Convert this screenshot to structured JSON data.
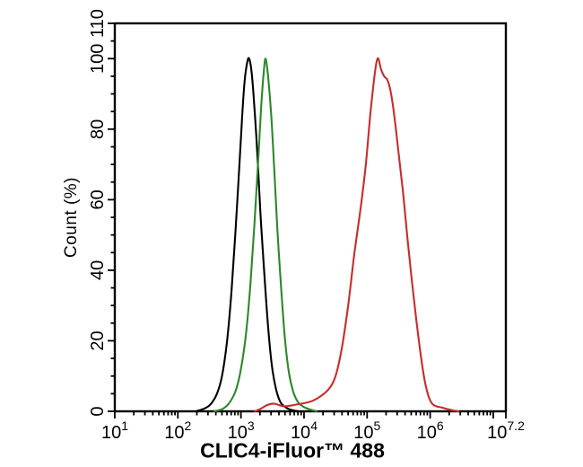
{
  "chart_data": {
    "type": "line",
    "subtype": "flow-cytometry-histogram",
    "title": "",
    "xlabel": "CLIC4-iFluor™ 488",
    "ylabel": "Count  (%)",
    "x_scale": "log10",
    "xlim_log": [
      1,
      7.2
    ],
    "ylim": [
      0,
      110
    ],
    "grid": "off",
    "legend": "none",
    "x_major_ticks_log": [
      1,
      2,
      3,
      4,
      5,
      6,
      7,
      7.2
    ],
    "x_tick_labels": [
      {
        "log": 1,
        "base": "10",
        "exp": "1"
      },
      {
        "log": 2,
        "base": "10",
        "exp": "2"
      },
      {
        "log": 3,
        "base": "10",
        "exp": "3"
      },
      {
        "log": 4,
        "base": "10",
        "exp": "4"
      },
      {
        "log": 5,
        "base": "10",
        "exp": "5"
      },
      {
        "log": 6,
        "base": "10",
        "exp": "6"
      },
      {
        "log": 7.2,
        "base": "10",
        "exp": "7.2"
      }
    ],
    "x_minor_ticks_per_decade": [
      2,
      3,
      4,
      5,
      6,
      7,
      8,
      9
    ],
    "y_major_ticks": [
      0,
      20,
      40,
      60,
      80,
      100,
      110
    ],
    "y_tick_labels": [
      "0",
      "20",
      "40",
      "60",
      "80",
      "100",
      "110"
    ],
    "y_minor_step": 5,
    "axis_color": "#000000",
    "series": [
      {
        "name": "black-curve",
        "color": "#000000",
        "peak_log_x": 3.13,
        "peak_pct": 100,
        "points": [
          [
            2.28,
            0
          ],
          [
            2.42,
            0.8
          ],
          [
            2.52,
            2
          ],
          [
            2.62,
            5
          ],
          [
            2.7,
            10
          ],
          [
            2.78,
            20
          ],
          [
            2.85,
            34
          ],
          [
            2.91,
            50
          ],
          [
            2.97,
            68
          ],
          [
            3.02,
            84
          ],
          [
            3.06,
            94
          ],
          [
            3.1,
            99
          ],
          [
            3.13,
            100
          ],
          [
            3.17,
            96
          ],
          [
            3.21,
            87
          ],
          [
            3.26,
            73
          ],
          [
            3.31,
            56
          ],
          [
            3.37,
            39
          ],
          [
            3.43,
            24
          ],
          [
            3.49,
            13
          ],
          [
            3.56,
            6
          ],
          [
            3.63,
            2.5
          ],
          [
            3.72,
            1
          ],
          [
            3.82,
            0.3
          ],
          [
            3.92,
            0
          ]
        ]
      },
      {
        "name": "green-curve",
        "color": "#2d872d",
        "peak_log_x": 3.39,
        "peak_pct": 100,
        "points": [
          [
            2.58,
            0
          ],
          [
            2.72,
            0.8
          ],
          [
            2.82,
            2.5
          ],
          [
            2.92,
            6
          ],
          [
            3.0,
            12
          ],
          [
            3.08,
            22
          ],
          [
            3.15,
            36
          ],
          [
            3.21,
            52
          ],
          [
            3.27,
            70
          ],
          [
            3.32,
            86
          ],
          [
            3.36,
            96
          ],
          [
            3.39,
            100
          ],
          [
            3.43,
            95
          ],
          [
            3.48,
            84
          ],
          [
            3.53,
            68
          ],
          [
            3.58,
            51
          ],
          [
            3.64,
            34
          ],
          [
            3.7,
            20
          ],
          [
            3.76,
            11
          ],
          [
            3.83,
            5.5
          ],
          [
            3.91,
            2.5
          ],
          [
            4.0,
            1.2
          ],
          [
            4.1,
            0.5
          ],
          [
            4.2,
            0
          ]
        ]
      },
      {
        "name": "red-curve",
        "color": "#c62d2d",
        "peak_log_x": 5.18,
        "peak_pct": 100,
        "points": [
          [
            3.22,
            0
          ],
          [
            3.32,
            0.8
          ],
          [
            3.42,
            1.8
          ],
          [
            3.52,
            2.2
          ],
          [
            3.6,
            1.8
          ],
          [
            3.68,
            1.4
          ],
          [
            3.78,
            1.6
          ],
          [
            3.9,
            2
          ],
          [
            4.02,
            2.4
          ],
          [
            4.14,
            3
          ],
          [
            4.28,
            4.5
          ],
          [
            4.4,
            6.5
          ],
          [
            4.5,
            10
          ],
          [
            4.6,
            18
          ],
          [
            4.7,
            30
          ],
          [
            4.8,
            45
          ],
          [
            4.9,
            58
          ],
          [
            4.98,
            70
          ],
          [
            5.05,
            84
          ],
          [
            5.11,
            94
          ],
          [
            5.15,
            99
          ],
          [
            5.18,
            100
          ],
          [
            5.22,
            97
          ],
          [
            5.27,
            95
          ],
          [
            5.32,
            94
          ],
          [
            5.37,
            91
          ],
          [
            5.43,
            84
          ],
          [
            5.5,
            73
          ],
          [
            5.57,
            62
          ],
          [
            5.64,
            49
          ],
          [
            5.71,
            37
          ],
          [
            5.78,
            26
          ],
          [
            5.85,
            16
          ],
          [
            5.91,
            9
          ],
          [
            5.97,
            4.5
          ],
          [
            6.03,
            2.2
          ],
          [
            6.1,
            1.4
          ],
          [
            6.18,
            1.1
          ],
          [
            6.26,
            0.7
          ],
          [
            6.35,
            0.3
          ],
          [
            6.45,
            0
          ]
        ]
      }
    ]
  }
}
